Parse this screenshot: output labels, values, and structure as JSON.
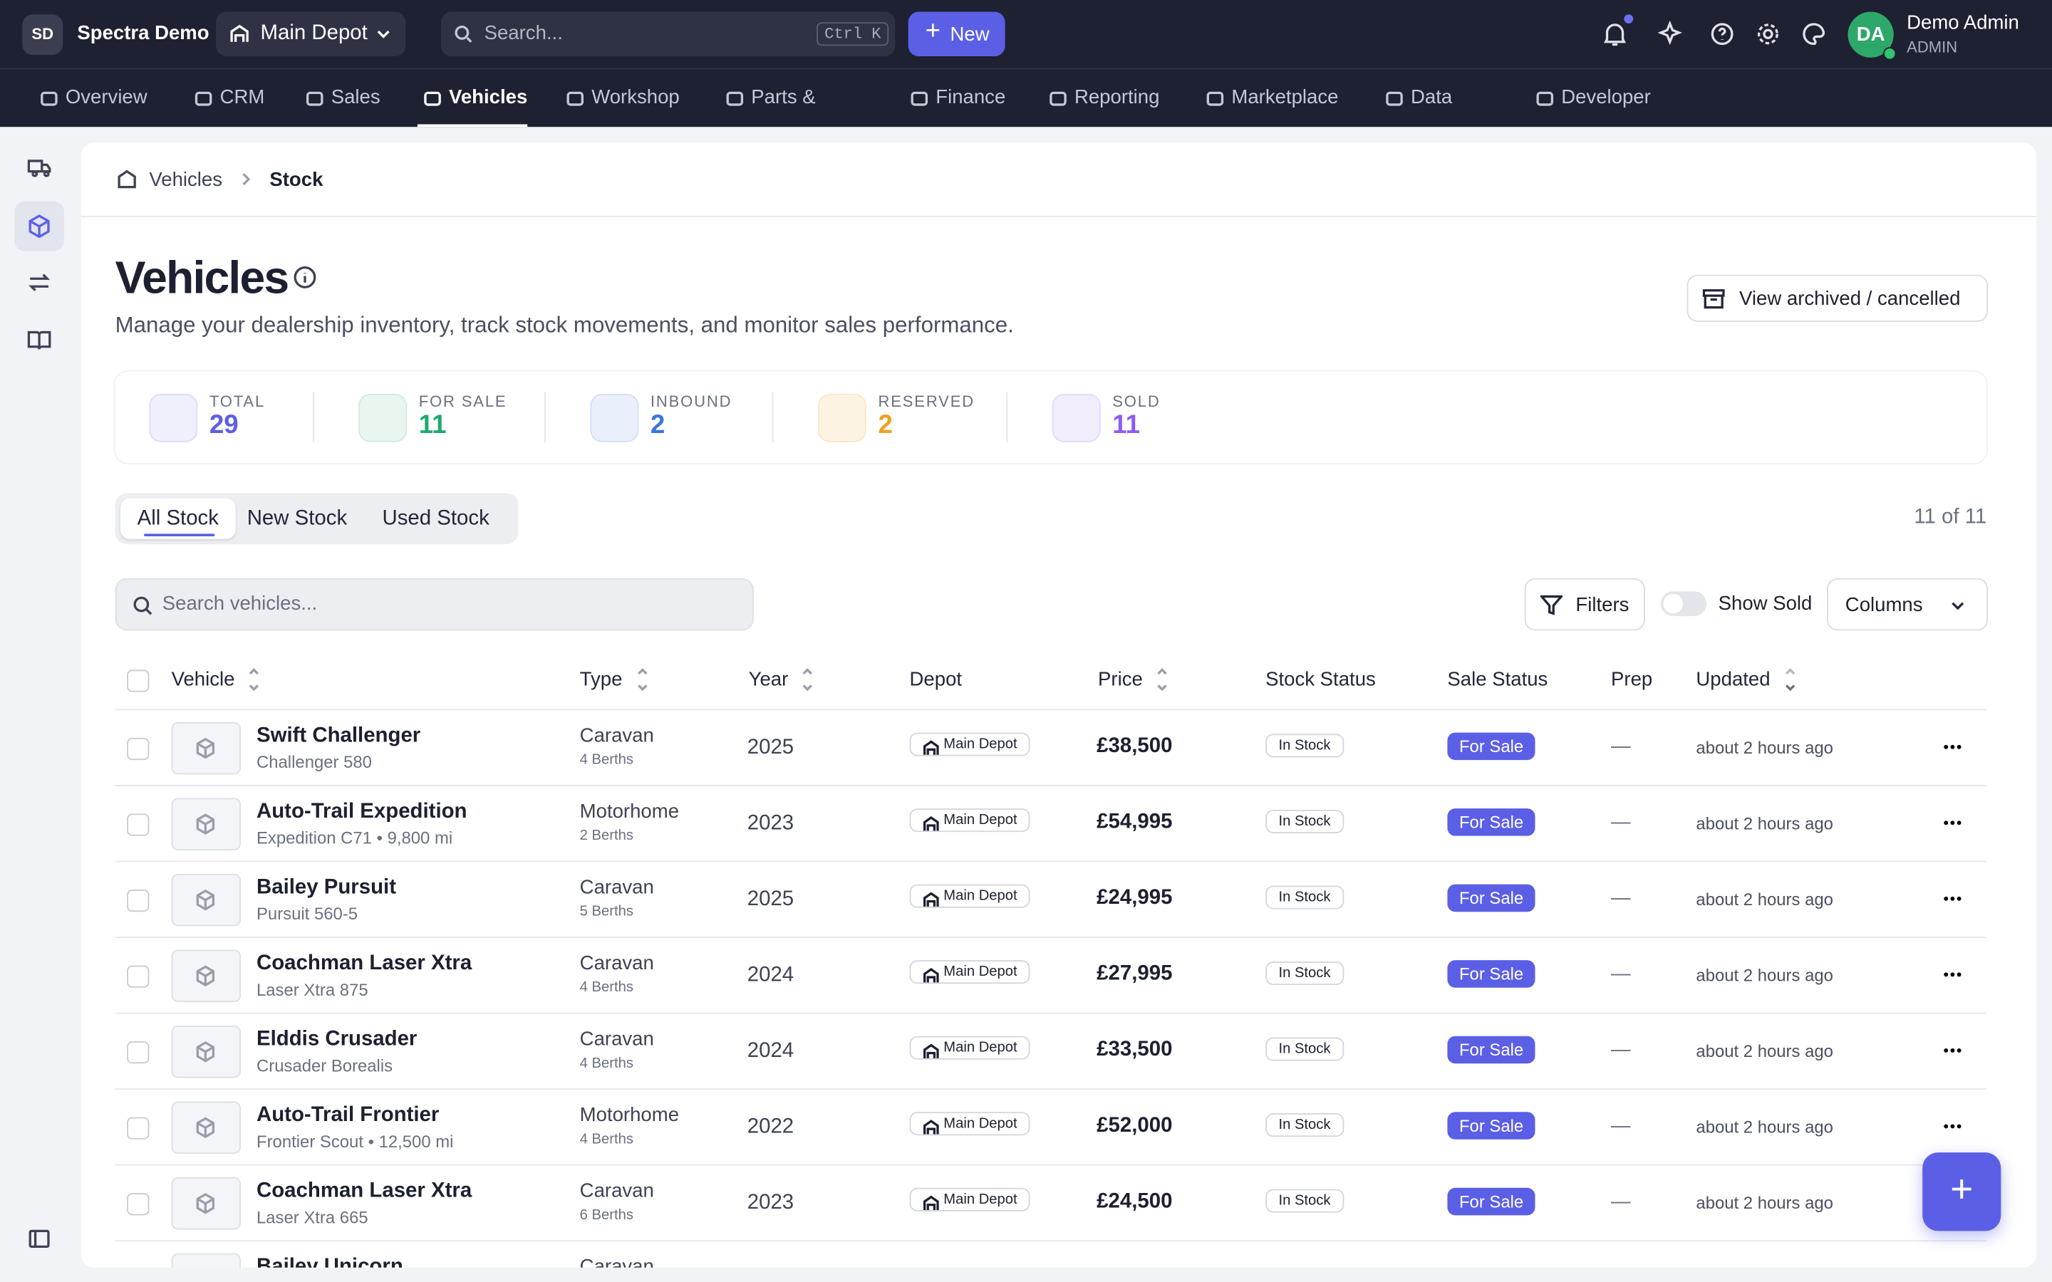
{
  "header": {
    "brand_initials": "SD",
    "brand": "Spectra Demo",
    "depot": "Main Depot",
    "search_placeholder": "Search...",
    "shortcut": "Ctrl K",
    "new_button": "New",
    "user_initials": "DA",
    "user_name": "Demo Admin",
    "user_role": "ADMIN"
  },
  "nav": [
    "Overview",
    "CRM",
    "Sales",
    "Vehicles",
    "Workshop",
    "Parts & Shop",
    "Finance",
    "Reporting",
    "Marketplace",
    "Data Hub",
    "Developer"
  ],
  "breadcrumb": [
    "Vehicles",
    "Stock"
  ],
  "page": {
    "title": "Vehicles",
    "subtitle": "Manage your dealership inventory, track stock movements, and monitor sales performance.",
    "archived_button": "View archived / cancelled"
  },
  "stats": [
    {
      "label": "TOTAL",
      "value": 29
    },
    {
      "label": "FOR SALE",
      "value": 11
    },
    {
      "label": "INBOUND",
      "value": 2
    },
    {
      "label": "RESERVED",
      "value": 2
    },
    {
      "label": "SOLD",
      "value": 11
    }
  ],
  "tabs": [
    "All Stock",
    "New Stock",
    "Used Stock"
  ],
  "count": "11 of 11",
  "toolbar": {
    "search_placeholder": "Search vehicles...",
    "filters": "Filters",
    "show_sold": "Show Sold",
    "columns": "Columns"
  },
  "table": {
    "columns": [
      "Vehicle",
      "Type",
      "Year",
      "Depot",
      "Price",
      "Stock Status",
      "Sale Status",
      "Prep",
      "Updated"
    ],
    "rows": [
      {
        "name": "Swift Challenger",
        "model": "Challenger 580",
        "type": "Caravan",
        "berths": "4 Berths",
        "year": "2025",
        "depot": "Main Depot",
        "price": "£38,500",
        "stock_status": "In Stock",
        "sale_status": "For Sale",
        "prep": "—",
        "updated": "about 2 hours ago"
      },
      {
        "name": "Auto-Trail Expedition",
        "model": "Expedition C71 • 9,800 mi",
        "type": "Motorhome",
        "berths": "2 Berths",
        "year": "2023",
        "depot": "Main Depot",
        "price": "£54,995",
        "stock_status": "In Stock",
        "sale_status": "For Sale",
        "prep": "—",
        "updated": "about 2 hours ago"
      },
      {
        "name": "Bailey Pursuit",
        "model": "Pursuit 560-5",
        "type": "Caravan",
        "berths": "5 Berths",
        "year": "2025",
        "depot": "Main Depot",
        "price": "£24,995",
        "stock_status": "In Stock",
        "sale_status": "For Sale",
        "prep": "—",
        "updated": "about 2 hours ago"
      },
      {
        "name": "Coachman Laser Xtra",
        "model": "Laser Xtra 875",
        "type": "Caravan",
        "berths": "4 Berths",
        "year": "2024",
        "depot": "Main Depot",
        "price": "£27,995",
        "stock_status": "In Stock",
        "sale_status": "For Sale",
        "prep": "—",
        "updated": "about 2 hours ago"
      },
      {
        "name": "Elddis Crusader",
        "model": "Crusader Borealis",
        "type": "Caravan",
        "berths": "4 Berths",
        "year": "2024",
        "depot": "Main Depot",
        "price": "£33,500",
        "stock_status": "In Stock",
        "sale_status": "For Sale",
        "prep": "—",
        "updated": "about 2 hours ago"
      },
      {
        "name": "Auto-Trail Frontier",
        "model": "Frontier Scout • 12,500 mi",
        "type": "Motorhome",
        "berths": "4 Berths",
        "year": "2022",
        "depot": "Main Depot",
        "price": "£52,000",
        "stock_status": "In Stock",
        "sale_status": "For Sale",
        "prep": "—",
        "updated": "about 2 hours ago"
      },
      {
        "name": "Coachman Laser Xtra",
        "model": "Laser Xtra 665",
        "type": "Caravan",
        "berths": "6 Berths",
        "year": "2023",
        "depot": "Main Depot",
        "price": "£24,500",
        "stock_status": "In Stock",
        "sale_status": "For Sale",
        "prep": "—",
        "updated": "about 2 hours ago"
      },
      {
        "name": "Bailey Unicorn",
        "type": "Caravan"
      }
    ]
  }
}
